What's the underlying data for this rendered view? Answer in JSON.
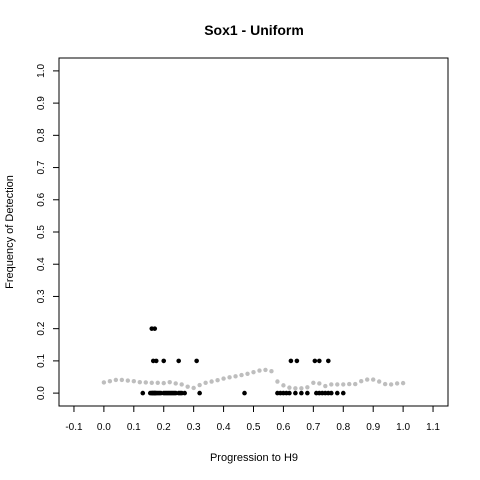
{
  "chart_data": {
    "type": "scatter",
    "title": "Sox1 - Uniform",
    "xlabel": "Progression to H9",
    "ylabel": "Frequency of Detection",
    "xlim": [
      -0.15,
      1.15
    ],
    "ylim": [
      -0.04,
      1.04
    ],
    "x_ticks": [
      "-0.1",
      "0.0",
      "0.1",
      "0.2",
      "0.3",
      "0.4",
      "0.5",
      "0.6",
      "0.7",
      "0.8",
      "0.9",
      "1.0",
      "1.1"
    ],
    "y_ticks": [
      "0.0",
      "0.1",
      "0.2",
      "0.3",
      "0.4",
      "0.5",
      "0.6",
      "0.7",
      "0.8",
      "0.9",
      "1.0"
    ],
    "grid": false,
    "colors": {
      "observed": "#000000",
      "smoothed": "#bebebe"
    },
    "series": [
      {
        "role": "observed",
        "x": [
          0.13,
          0.155,
          0.16,
          0.162,
          0.165,
          0.168,
          0.17,
          0.172,
          0.175,
          0.18,
          0.185,
          0.19,
          0.2,
          0.205,
          0.21,
          0.215,
          0.22,
          0.225,
          0.23,
          0.235,
          0.24,
          0.25,
          0.255,
          0.26,
          0.27,
          0.165,
          0.175,
          0.2,
          0.25,
          0.31,
          0.32,
          0.47,
          0.58,
          0.59,
          0.6,
          0.61,
          0.62,
          0.64,
          0.66,
          0.68,
          0.71,
          0.72,
          0.73,
          0.74,
          0.75,
          0.76,
          0.78,
          0.8,
          0.16,
          0.17,
          0.625,
          0.645,
          0.705,
          0.72,
          0.75
        ],
        "y": [
          0,
          0,
          0,
          0,
          0,
          0,
          0,
          0,
          0,
          0,
          0,
          0,
          0,
          0,
          0,
          0,
          0,
          0,
          0,
          0,
          0,
          0,
          0,
          0,
          0,
          0.1,
          0.1,
          0.1,
          0.1,
          0.1,
          0,
          0,
          0,
          0,
          0,
          0,
          0,
          0,
          0,
          0,
          0,
          0,
          0,
          0,
          0,
          0,
          0,
          0,
          0.2,
          0.2,
          0.1,
          0.1,
          0.1,
          0.1,
          0.1
        ]
      },
      {
        "role": "smoothed",
        "x": [
          0.0,
          0.02,
          0.04,
          0.06,
          0.08,
          0.1,
          0.12,
          0.14,
          0.16,
          0.18,
          0.2,
          0.22,
          0.24,
          0.26,
          0.28,
          0.3,
          0.32,
          0.34,
          0.36,
          0.38,
          0.4,
          0.42,
          0.44,
          0.46,
          0.48,
          0.5,
          0.52,
          0.54,
          0.56,
          0.58,
          0.6,
          0.62,
          0.64,
          0.66,
          0.68,
          0.7,
          0.72,
          0.74,
          0.76,
          0.78,
          0.8,
          0.82,
          0.84,
          0.86,
          0.88,
          0.9,
          0.92,
          0.94,
          0.96,
          0.98,
          1.0
        ],
        "y": [
          0.033,
          0.037,
          0.041,
          0.041,
          0.039,
          0.037,
          0.034,
          0.033,
          0.032,
          0.032,
          0.031,
          0.034,
          0.03,
          0.027,
          0.02,
          0.016,
          0.025,
          0.032,
          0.036,
          0.04,
          0.045,
          0.049,
          0.052,
          0.056,
          0.06,
          0.065,
          0.07,
          0.072,
          0.068,
          0.036,
          0.024,
          0.017,
          0.015,
          0.015,
          0.018,
          0.032,
          0.03,
          0.022,
          0.027,
          0.027,
          0.027,
          0.028,
          0.028,
          0.037,
          0.042,
          0.042,
          0.036,
          0.028,
          0.027,
          0.03,
          0.031
        ]
      }
    ]
  }
}
